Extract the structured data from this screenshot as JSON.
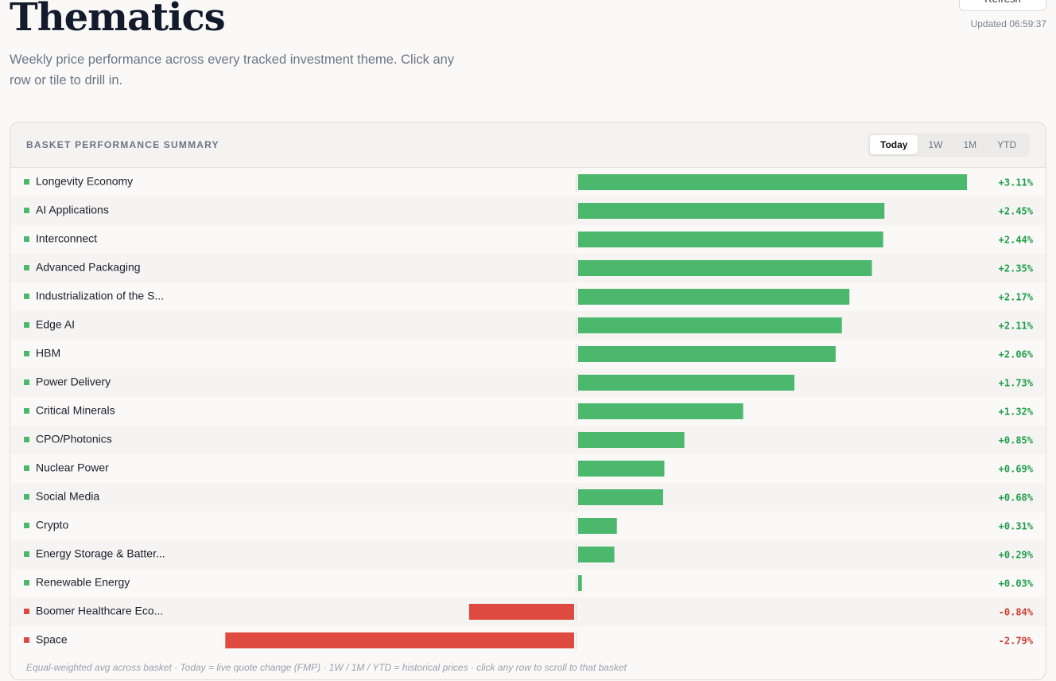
{
  "header": {
    "title": "Thematics",
    "subtitle": "Weekly price performance across every tracked investment theme. Click any row or tile to drill in.",
    "refresh": "Refresh",
    "updated": "Updated 06:59:37"
  },
  "card": {
    "label": "BASKET PERFORMANCE SUMMARY",
    "tabs": [
      "Today",
      "1W",
      "1M",
      "YTD"
    ],
    "active_tab": "Today",
    "footer": "Equal-weighted avg across basket · Today = live quote change (FMP) · 1W / 1M / YTD = historical prices · click any row to scroll to that basket"
  },
  "chart_data": {
    "type": "hbar",
    "categories": [
      "Longevity Economy",
      "AI Applications",
      "Interconnect",
      "Advanced Packaging",
      "Industrialization of the S...",
      "Edge AI",
      "HBM",
      "Power Delivery",
      "Critical Minerals",
      "CPO/Photonics",
      "Nuclear Power",
      "Social Media",
      "Crypto",
      "Energy Storage & Batter...",
      "Renewable Energy",
      "Boomer Healthcare Eco...",
      "Space"
    ],
    "values": [
      3.11,
      2.45,
      2.44,
      2.35,
      2.17,
      2.11,
      2.06,
      1.73,
      1.32,
      0.85,
      0.69,
      0.68,
      0.31,
      0.29,
      0.03,
      -0.84,
      -2.79
    ],
    "value_labels": [
      "+3.11%",
      "+2.45%",
      "+2.44%",
      "+2.35%",
      "+2.17%",
      "+2.11%",
      "+2.06%",
      "+1.73%",
      "+1.32%",
      "+0.85%",
      "+0.69%",
      "+0.68%",
      "+0.31%",
      "+0.29%",
      "+0.03%",
      "-0.84%",
      "-2.79%"
    ],
    "positive_color": "#4cb86e",
    "negative_color": "#de4a40"
  }
}
